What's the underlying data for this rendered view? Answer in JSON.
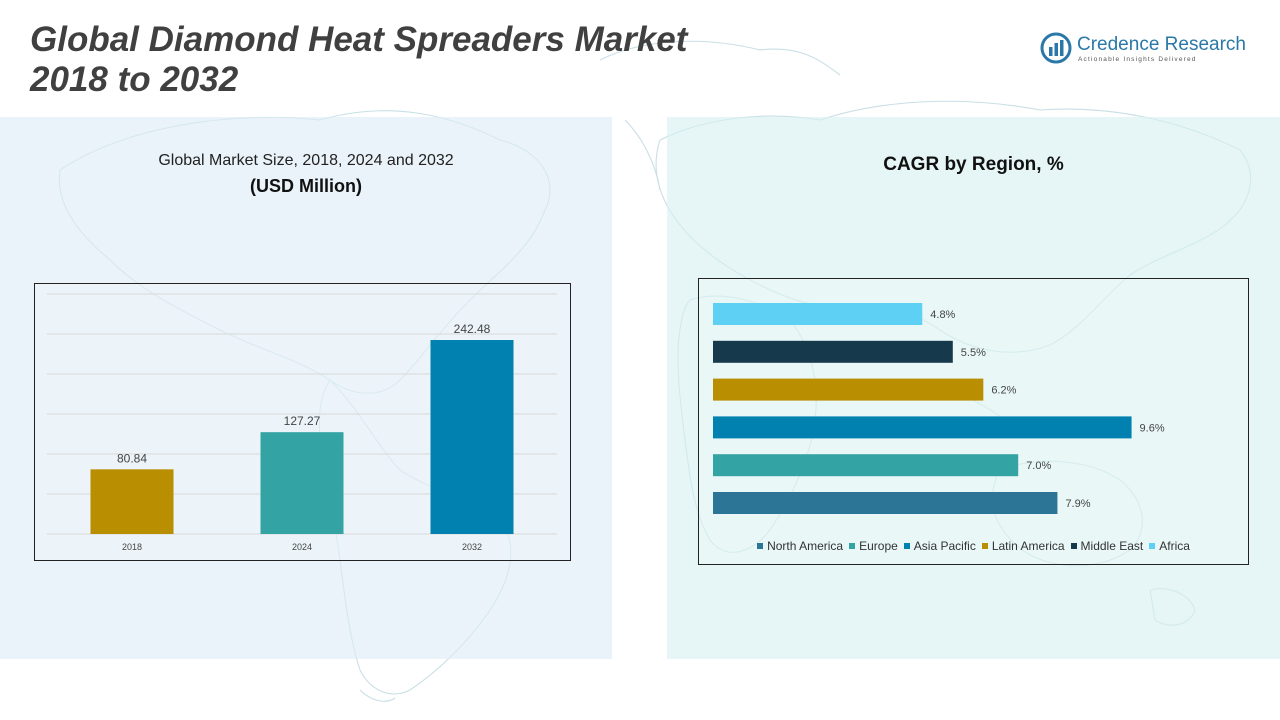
{
  "title": {
    "line1": "Global Diamond Heat Spreaders Market",
    "line2": "2018 to 2032"
  },
  "logo": {
    "name": "Credence Research",
    "tagline": "Actionable Insights Delivered",
    "color": "#2a78a8"
  },
  "chart_data": [
    {
      "type": "bar",
      "title": "Global Market Size, 2018, 2024 and 2032",
      "subtitle": "(USD Million)",
      "categories": [
        "2018",
        "2024",
        "2032"
      ],
      "values": [
        80.84,
        127.27,
        242.48
      ],
      "value_labels": [
        "80.84",
        "127.27",
        "242.48"
      ],
      "colors": [
        "#b98e00",
        "#34a3a3",
        "#0081b0"
      ],
      "ylim": [
        0,
        300
      ],
      "grid": true
    },
    {
      "type": "bar",
      "orientation": "horizontal",
      "title": "CAGR by Region, %",
      "categories": [
        "North America",
        "Europe",
        "Asia Pacific",
        "Latin America",
        "Middle East",
        "Africa"
      ],
      "values": [
        7.9,
        7.0,
        9.6,
        6.2,
        5.5,
        4.8
      ],
      "value_labels": [
        "7.9%",
        "7.0%",
        "9.6%",
        "6.2%",
        "5.5%",
        "4.8%"
      ],
      "colors": [
        "#2d7596",
        "#34a3a3",
        "#0081b0",
        "#b98e00",
        "#163a4b",
        "#5ed0f3"
      ],
      "xlim": [
        0,
        10
      ],
      "legend": "bottom",
      "grid": false
    }
  ]
}
